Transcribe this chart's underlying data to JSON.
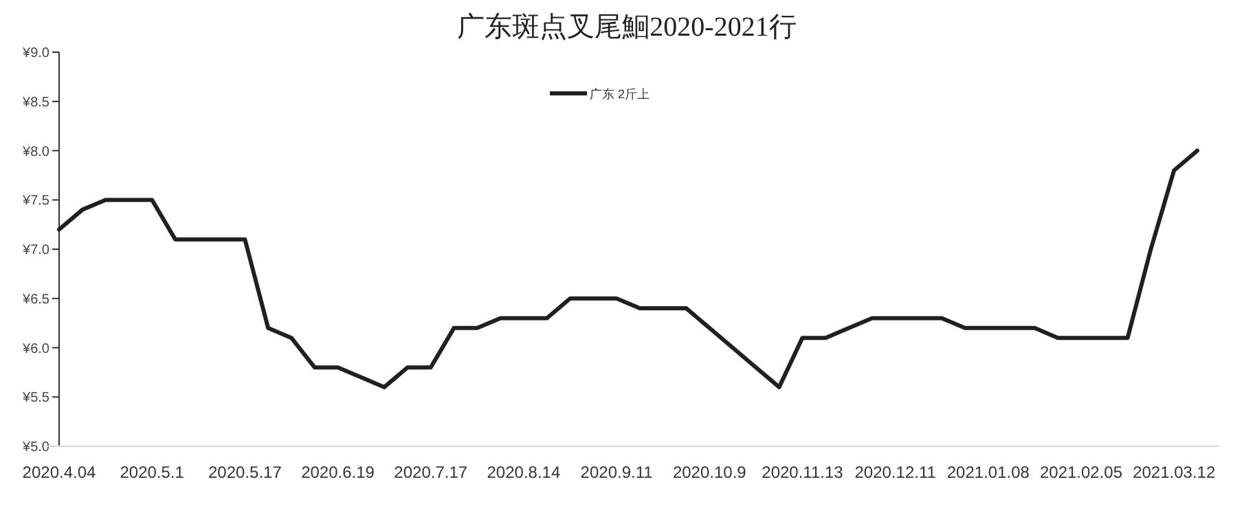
{
  "chart_data": {
    "type": "line",
    "title": "广东斑点叉尾鮰2020-2021行",
    "categories": [
      "2020.4.04",
      null,
      null,
      null,
      "2020.5.1",
      null,
      null,
      null,
      "2020.5.17",
      null,
      null,
      null,
      "2020.6.19",
      null,
      null,
      null,
      "2020.7.17",
      null,
      null,
      null,
      "2020.8.14",
      null,
      null,
      null,
      "2020.9.11",
      null,
      null,
      null,
      "2020.10.9",
      null,
      null,
      null,
      "2020.11.13",
      null,
      null,
      null,
      "2020.12.11",
      null,
      null,
      null,
      "2021.01.08",
      null,
      null,
      null,
      "2021.02.05",
      null,
      null,
      null,
      "2021.03.12",
      null
    ],
    "series": [
      {
        "name": "广东 2斤上",
        "color": "#231f20",
        "values": [
          7.2,
          7.4,
          7.5,
          7.5,
          7.5,
          7.1,
          7.1,
          7.1,
          7.1,
          6.2,
          6.1,
          5.8,
          5.8,
          5.7,
          5.6,
          5.8,
          5.8,
          6.2,
          6.2,
          6.3,
          6.3,
          6.3,
          6.5,
          6.5,
          6.5,
          6.4,
          6.4,
          6.4,
          6.2,
          6.0,
          5.8,
          5.6,
          6.1,
          6.1,
          6.2,
          6.3,
          6.3,
          6.3,
          6.3,
          6.2,
          6.2,
          6.2,
          6.2,
          6.1,
          6.1,
          6.1,
          6.1,
          7.0,
          7.8,
          8.0
        ]
      }
    ],
    "ylim": [
      5.0,
      9.0
    ],
    "yticks": [
      {
        "value": 5.0,
        "label": "¥5.0"
      },
      {
        "value": 5.5,
        "label": "¥5.5"
      },
      {
        "value": 6.0,
        "label": "¥6.0"
      },
      {
        "value": 6.5,
        "label": "¥6.5"
      },
      {
        "value": 7.0,
        "label": "¥7.0"
      },
      {
        "value": 7.5,
        "label": "¥7.5"
      },
      {
        "value": 8.0,
        "label": "¥8.0"
      },
      {
        "value": 8.5,
        "label": "¥8.5"
      },
      {
        "value": 9.0,
        "label": "¥9.0"
      }
    ],
    "grid": false,
    "legend": "top",
    "marker": "none",
    "line_style": "solid"
  }
}
